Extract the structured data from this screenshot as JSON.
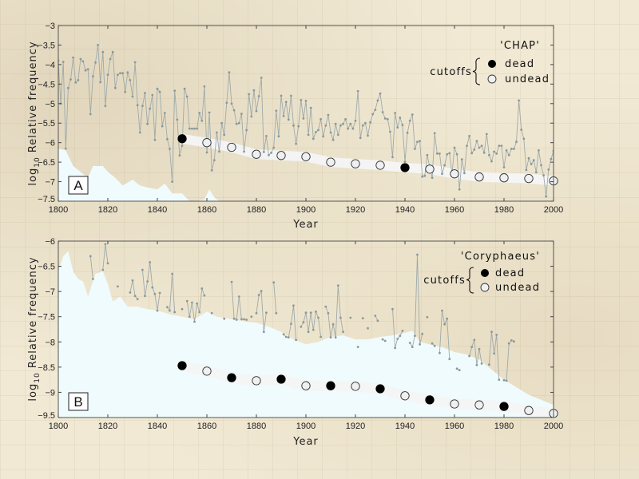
{
  "chart_data": [
    {
      "type": "line",
      "panel_label": "A",
      "title": "",
      "legend_title": "'CHAP'",
      "legend_group_label": "cutoffs",
      "legend_entries": [
        "dead",
        "undead"
      ],
      "legend_placement": "top-right",
      "xlabel": "Year",
      "ylabel": "log10 Relative frequency",
      "ylabel_parts": {
        "prefix": "log",
        "sub": "10",
        "rest": " Relative frequency"
      },
      "xlim": [
        1800,
        2000
      ],
      "ylim": [
        -7.5,
        -3
      ],
      "xticks": [
        1800,
        1820,
        1840,
        1860,
        1880,
        1900,
        1920,
        1940,
        1960,
        1980,
        2000
      ],
      "xtick_labels": [
        "1800",
        "1820",
        "1840",
        "1860",
        "1880",
        "1900",
        "1920",
        "1940",
        "1960",
        "1980",
        "2000"
      ],
      "yticks": [
        -3,
        -3.5,
        -4,
        -4.5,
        -5,
        -5.5,
        -6,
        -6.5,
        -7,
        -7.5
      ],
      "ytick_labels": [
        "−3",
        "−3.5",
        "−4",
        "−4.5",
        "−5",
        "−5.5",
        "−6",
        "−6.5",
        "−7",
        "−7.5"
      ],
      "grid": false,
      "series": [
        {
          "name": "frequency",
          "x_start": 1800,
          "values": [
            -3.9,
            -5.0,
            -3.93,
            -6.15,
            -4.6,
            -4.38,
            -3.82,
            -4.46,
            -4.4,
            -3.86,
            -3.92,
            -4.15,
            -4.12,
            -5.27,
            -4.3,
            -3.95,
            -3.5,
            -4.45,
            -3.68,
            -5.06,
            -4.26,
            -3.86,
            -3.68,
            -4.6,
            -4.26,
            -4.22,
            -4.22,
            -4.7,
            -4.2,
            -4.4,
            -4.82,
            -3.94,
            -5.04,
            -5.74,
            -5.06,
            -4.73,
            -5.52,
            -5.13,
            -4.78,
            -5.93,
            -4.62,
            -4.7,
            -5.58,
            -5.24,
            -5.91,
            -6.16,
            -7.0,
            -4.67,
            -5.41,
            -6.33,
            -6.08,
            -4.62,
            -4.82,
            -5.64,
            -5.64,
            -5.64,
            -5.64,
            -5.24,
            -5.44,
            -4.56,
            -6.25,
            -5.23,
            -6.71,
            -6.45,
            -5.74,
            -6.23,
            -5.5,
            -5.8,
            -4.98,
            -4.2,
            -5.0,
            -5.17,
            -5.52,
            -5.5,
            -5.26,
            -6.23,
            -5.68,
            -4.76,
            -5.33,
            -4.66,
            -5.19,
            -4.81,
            -4.34,
            -6.24,
            -5.83,
            -6.32,
            -6.26,
            -6.13,
            -5.18,
            -5.84,
            -4.8,
            -5.32,
            -4.96,
            -5.41,
            -4.8,
            -5.56,
            -6.03,
            -5.58,
            -4.91,
            -5.38,
            -4.93,
            -5.8,
            -5.11,
            -5.9,
            -5.73,
            -5.68,
            -5.4,
            -5.84,
            -5.56,
            -5.29,
            -5.74,
            -5.93,
            -5.52,
            -5.8,
            -5.56,
            -5.52,
            -5.4,
            -5.64,
            -5.52,
            -5.64,
            -5.44,
            -4.68,
            -5.88,
            -5.56,
            -5.5,
            -5.82,
            -5.48,
            -5.27,
            -5.16,
            -4.92,
            -4.74,
            -5.22,
            -5.38,
            -5.4,
            -5.72,
            -6.37,
            -5.24,
            -5.61,
            -5.36,
            -5.55,
            -6.49,
            -5.75,
            -5.44,
            -5.28,
            -6.16,
            -5.98,
            -5.96,
            -6.87,
            -6.85,
            -6.32,
            -6.62,
            -6.9,
            -5.76,
            -6.28,
            -6.28,
            -6.8,
            -6.58,
            -6.3,
            -6.27,
            -6.8,
            -6.13,
            -6.3,
            -7.2,
            -6.43,
            -6.78,
            -6.08,
            -5.83,
            -6.27,
            -6.18,
            -5.96,
            -6.13,
            -6.08,
            -6.26,
            -5.78,
            -6.32,
            -6.48,
            -6.23,
            -6.28,
            -6.08,
            -6.08,
            -6.63,
            -6.2,
            -6.32,
            -6.16,
            -6.16,
            -5.98,
            -4.92,
            -5.67,
            -5.9,
            -6.7,
            -6.4,
            -6.55,
            -6.45,
            -6.76,
            -6.2,
            -6.58,
            -6.84,
            -7.38,
            -6.69,
            -6.42,
            -6.21,
            -6.69,
            -6.59,
            -7.35,
            -6.55,
            -6.91,
            -6.62,
            -6.55,
            -6.85,
            -6.58,
            -6.78,
            -6.35,
            -6.96
          ]
        },
        {
          "name": "cutoffs",
          "x": [
            1850,
            1860,
            1870,
            1880,
            1890,
            1900,
            1910,
            1920,
            1930,
            1940,
            1950,
            1960,
            1970,
            1980,
            1990,
            2000
          ],
          "values": [
            -5.9,
            -6.0,
            -6.12,
            -6.3,
            -6.33,
            -6.36,
            -6.5,
            -6.54,
            -6.58,
            -6.64,
            -6.68,
            -6.8,
            -6.88,
            -6.9,
            -6.92,
            -6.98
          ],
          "status": [
            "dead",
            "undead",
            "undead",
            "undead",
            "undead",
            "undead",
            "undead",
            "undead",
            "undead",
            "dead",
            "undead",
            "undead",
            "undead",
            "undead",
            "undead",
            "undead"
          ]
        },
        {
          "name": "background-band-upper",
          "x": [
            1800,
            1803,
            1806,
            1808,
            1812,
            1814,
            1818,
            1820,
            1823,
            1826,
            1830,
            1833,
            1836,
            1840,
            1843,
            1846,
            1850,
            1853,
            1856,
            1859,
            1861,
            1863,
            1865
          ],
          "values": [
            -6.15,
            -6.2,
            -6.6,
            -6.7,
            -6.9,
            -6.6,
            -6.6,
            -6.75,
            -6.9,
            -7.1,
            -6.95,
            -7.1,
            -7.15,
            -7.2,
            -7.05,
            -7.3,
            -7.3,
            -7.5,
            -7.5,
            -7.45,
            -7.2,
            -7.4,
            -7.5
          ]
        }
      ]
    },
    {
      "type": "line",
      "panel_label": "B",
      "title": "",
      "legend_title": "'Coryphaeus'",
      "legend_group_label": "cutoffs",
      "legend_entries": [
        "dead",
        "undead"
      ],
      "legend_placement": "top-right",
      "xlabel": "Year",
      "ylabel": "log10 Relative frequency",
      "ylabel_parts": {
        "prefix": "log",
        "sub": "10",
        "rest": " Relative frequency"
      },
      "xlim": [
        1800,
        2000
      ],
      "ylim": [
        -9.5,
        -6
      ],
      "xticks": [
        1800,
        1820,
        1840,
        1860,
        1880,
        1900,
        1920,
        1940,
        1960,
        1980,
        2000
      ],
      "xtick_labels": [
        "1800",
        "1820",
        "1840",
        "1860",
        "1880",
        "1900",
        "1920",
        "1940",
        "1960",
        "1980",
        "2000"
      ],
      "yticks": [
        -6,
        -6.5,
        -7,
        -7.5,
        -8,
        -8.5,
        -9,
        -9.5
      ],
      "ytick_labels": [
        "−6",
        "−6.5",
        "−7",
        "−7.5",
        "−8",
        "−8.5",
        "−9",
        "−9.5"
      ],
      "grid": false,
      "series": [
        {
          "name": "frequency",
          "x_start": 1800,
          "values": [
            null,
            null,
            null,
            null,
            null,
            null,
            null,
            null,
            null,
            null,
            null,
            null,
            null,
            -6.3,
            -6.75,
            null,
            null,
            null,
            -6.57,
            -6.06,
            -6.44,
            null,
            null,
            null,
            -6.9,
            null,
            null,
            null,
            null,
            -7.02,
            -6.78,
            -7.09,
            -7.15,
            null,
            -6.57,
            -7.09,
            -6.8,
            -6.42,
            -6.92,
            -7.05,
            -7.38,
            -7.03,
            null,
            null,
            -7.31,
            -7.38,
            -6.65,
            -7.41,
            null,
            null,
            -7.35,
            null,
            -7.19,
            -7.5,
            -7.22,
            -7.6,
            -7.24,
            -7.41,
            -6.94,
            -7.08,
            null,
            null,
            -7.43,
            null,
            null,
            null,
            null,
            -7.54,
            null,
            null,
            -6.81,
            -7.54,
            -7.56,
            -7.1,
            -7.55,
            -7.55,
            -7.56,
            null,
            -7.5,
            null,
            -7.43,
            -7.07,
            -6.99,
            -7.8,
            -7.42,
            null,
            null,
            -6.82,
            -7.43,
            null,
            null,
            -7.85,
            -7.9,
            -7.91,
            -7.64,
            -7.28,
            -7.96,
            null,
            -7.7,
            -7.61,
            -7.42,
            -7.8,
            -7.42,
            -7.76,
            -7.4,
            -7.52,
            -7.9,
            null,
            -7.3,
            -7.43,
            -7.91,
            -7.65,
            -7.91,
            -6.88,
            -7.52,
            -7.8,
            null,
            null,
            -7.52,
            null,
            null,
            -8.1,
            null,
            -7.53,
            null,
            -7.73,
            null,
            null,
            -7.48,
            -7.58,
            null,
            -7.95,
            -7.98,
            null,
            null,
            -7.35,
            -8.12,
            -7.94,
            -7.88,
            -7.78,
            null,
            null,
            -8.02,
            -8.1,
            -7.88,
            -6.27,
            -8.05,
            -7.84,
            null,
            -7.51,
            null,
            -8.03,
            -8.08,
            null,
            -8.22,
            -7.38,
            -7.65,
            -7.54,
            -8.34,
            null,
            null,
            -8.53,
            -8.56,
            null,
            null,
            null,
            -8.28,
            -8.1,
            -7.96,
            -8.46,
            -8.14,
            -8.43,
            null,
            null,
            -8.45,
            -7.8,
            -8.23,
            -7.86,
            -8.75,
            null,
            -8.76,
            -8.77,
            -8.03,
            -7.97,
            -7.99
          ]
        },
        {
          "name": "cutoffs",
          "x": [
            1850,
            1860,
            1870,
            1880,
            1890,
            1900,
            1910,
            1920,
            1930,
            1940,
            1950,
            1960,
            1970,
            1980,
            1990,
            2000
          ],
          "values": [
            -8.47,
            -8.58,
            -8.71,
            -8.77,
            -8.74,
            -8.87,
            -8.87,
            -8.88,
            -8.93,
            -9.07,
            -9.15,
            -9.23,
            -9.25,
            -9.28,
            -9.36,
            -9.42
          ],
          "status": [
            "dead",
            "undead",
            "dead",
            "undead",
            "dead",
            "undead",
            "dead",
            "undead",
            "dead",
            "undead",
            "dead",
            "undead",
            "undead",
            "dead",
            "undead",
            "undead"
          ]
        },
        {
          "name": "background-band-upper",
          "x": [
            1800,
            1802,
            1804,
            1806,
            1808,
            1810,
            1812,
            1815,
            1818,
            1820,
            1822,
            1825,
            1828,
            1832,
            1836,
            1840,
            1845,
            1850,
            1855,
            1860,
            1864,
            1870,
            1876,
            1880,
            1885,
            1890,
            1895,
            1900,
            1905,
            1910,
            1915,
            1920,
            1925,
            1930,
            1935,
            1940,
            1943,
            1946,
            1950,
            1955,
            1960,
            1965,
            1970,
            1975,
            1980,
            1985,
            1990,
            1995,
            2000
          ],
          "values": [
            -6.6,
            -6.3,
            -6.2,
            -6.6,
            -6.75,
            -6.8,
            -7.1,
            -6.65,
            -6.6,
            -6.85,
            -7.2,
            -7.1,
            -7.3,
            -7.3,
            -7.35,
            -7.38,
            -7.45,
            -7.5,
            -7.55,
            -7.4,
            -7.5,
            -7.55,
            -7.6,
            -7.62,
            -7.7,
            -7.8,
            -7.95,
            -8.05,
            -8.0,
            -7.9,
            -7.87,
            -7.95,
            -7.95,
            -7.9,
            -7.87,
            -7.82,
            -7.78,
            -8.0,
            -8.05,
            -8.1,
            -8.2,
            -8.25,
            -8.35,
            -8.55,
            -8.75,
            -8.9,
            -9.05,
            -9.15,
            -9.25
          ]
        }
      ]
    }
  ]
}
